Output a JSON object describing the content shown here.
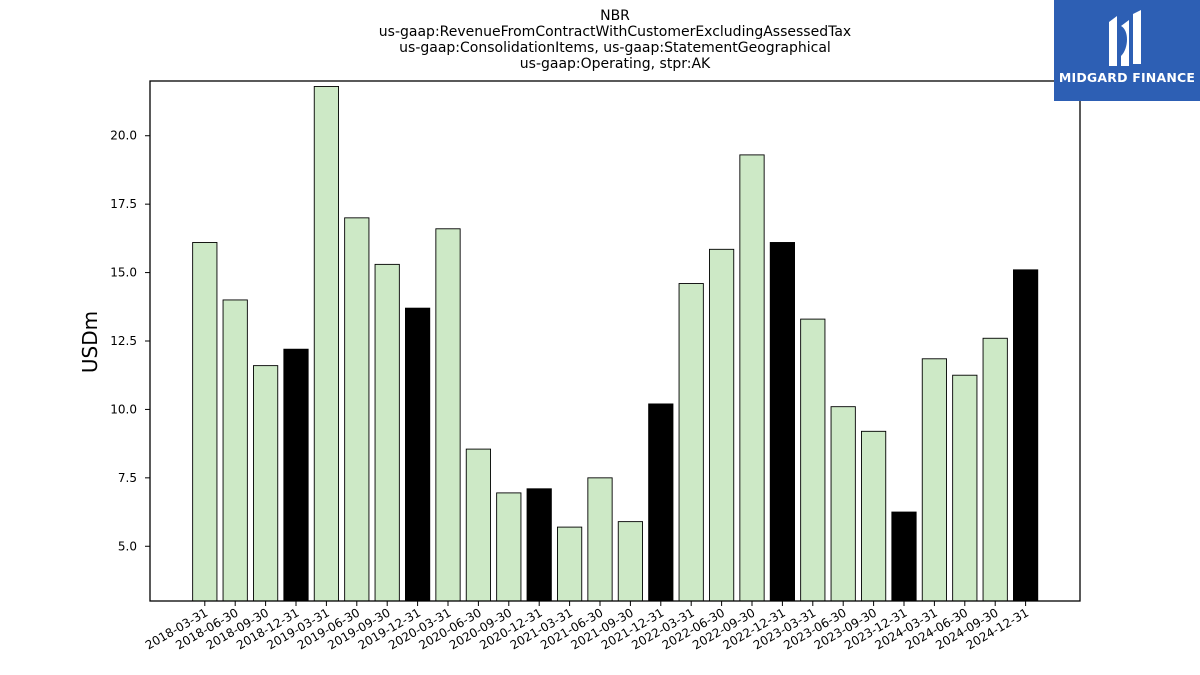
{
  "chart_data": {
    "type": "bar",
    "title_lines": [
      "NBR",
      "us-gaap:RevenueFromContractWithCustomerExcludingAssessedTax",
      "us-gaap:ConsolidationItems, us-gaap:StatementGeographical",
      "us-gaap:Operating, stpr:AK"
    ],
    "ylabel": "USDm",
    "xlabel": "",
    "ylim": [
      3.0,
      22.0
    ],
    "yticks": [
      5.0,
      7.5,
      10.0,
      12.5,
      15.0,
      17.5,
      20.0
    ],
    "ytick_labels": [
      "5.0",
      "7.5",
      "10.0",
      "12.5",
      "15.0",
      "17.5",
      "20.0"
    ],
    "grid": false,
    "categories": [
      "2018-03-31",
      "2018-06-30",
      "2018-09-30",
      "2018-12-31",
      "2019-03-31",
      "2019-06-30",
      "2019-09-30",
      "2019-12-31",
      "2020-03-31",
      "2020-06-30",
      "2020-09-30",
      "2020-12-31",
      "2021-03-31",
      "2021-06-30",
      "2021-09-30",
      "2021-12-31",
      "2022-03-31",
      "2022-06-30",
      "2022-09-30",
      "2022-12-31",
      "2023-03-31",
      "2023-06-30",
      "2023-09-30",
      "2023-12-31",
      "2024-03-31",
      "2024-06-30",
      "2024-09-30",
      "2024-12-31"
    ],
    "values": [
      16.1,
      14.0,
      11.6,
      12.2,
      21.8,
      17.0,
      15.3,
      13.7,
      16.6,
      8.55,
      6.95,
      7.1,
      5.7,
      7.5,
      5.9,
      10.2,
      14.6,
      15.85,
      19.3,
      16.1,
      13.3,
      10.1,
      9.2,
      6.25,
      11.85,
      11.25,
      12.6,
      15.1
    ],
    "colors": {
      "quarter": "#cde9c6",
      "year_end": "#000000",
      "edge": "#000000"
    }
  },
  "logo": {
    "text": "MIDGARD FINANCE",
    "background": "#2d5fb4"
  }
}
